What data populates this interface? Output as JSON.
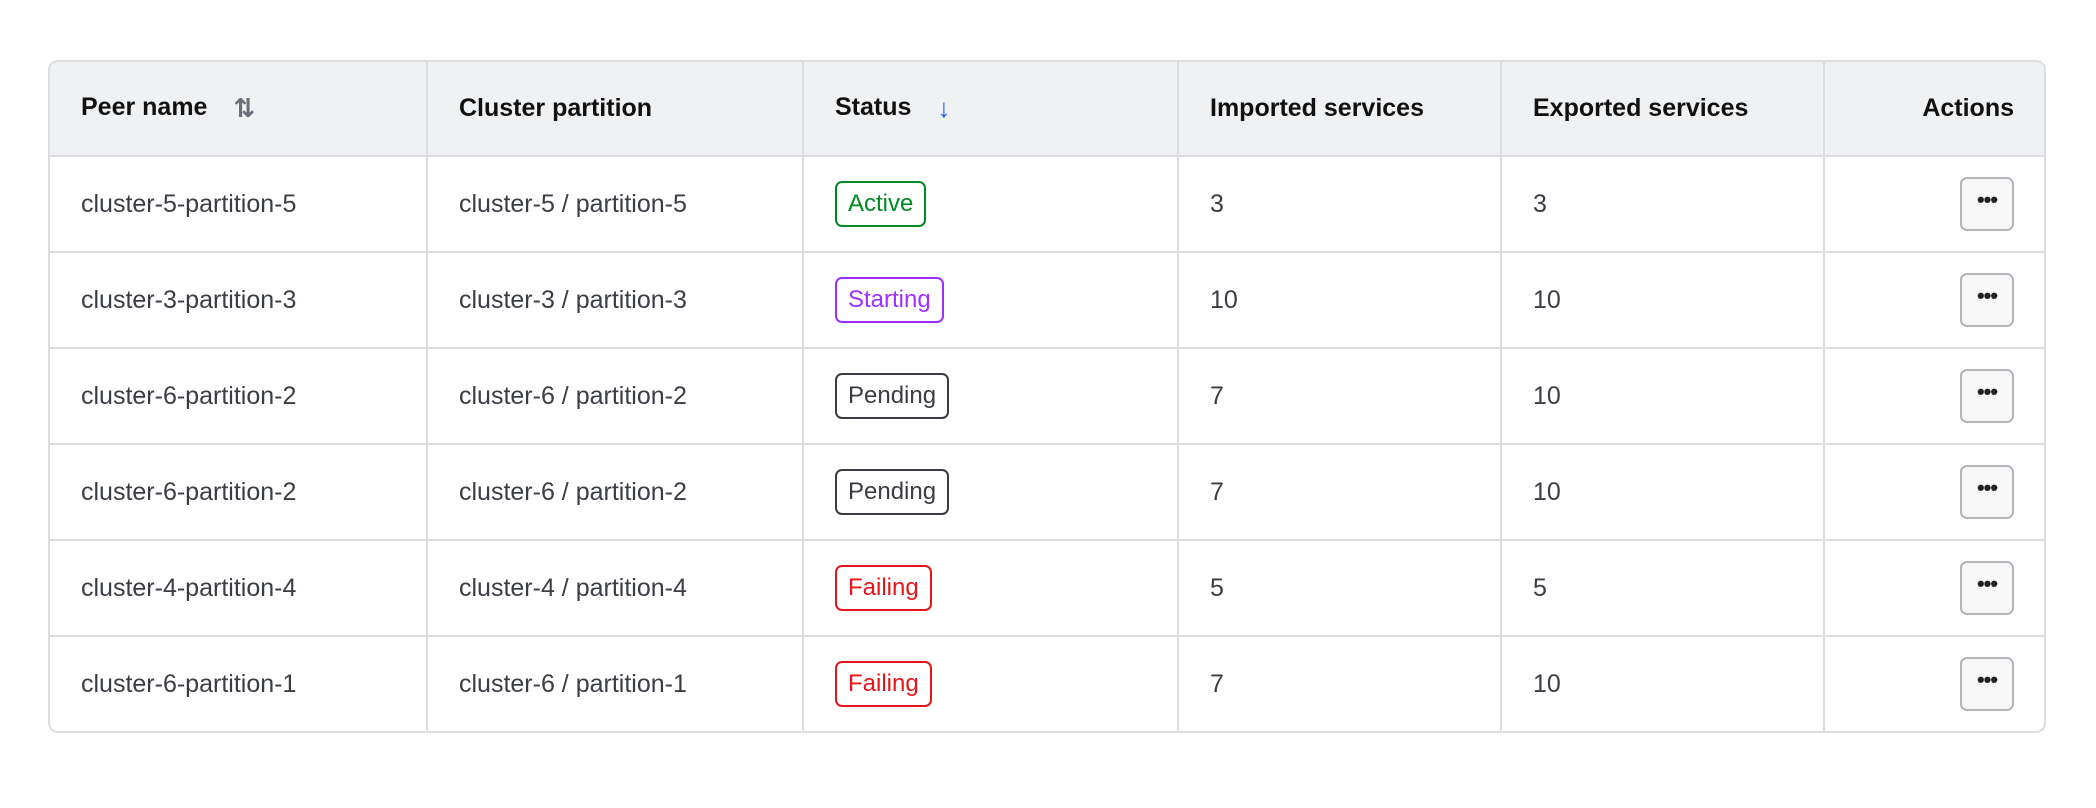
{
  "columns": [
    {
      "label": "Peer name",
      "sort_icon": "sort-both-icon",
      "sort_glyph": "⇅"
    },
    {
      "label": "Cluster partition"
    },
    {
      "label": "Status",
      "sort_icon": "arrow-down-icon",
      "sort_glyph": "↓"
    },
    {
      "label": "Imported services"
    },
    {
      "label": "Exported services"
    },
    {
      "label": "Actions"
    }
  ],
  "status_colors": {
    "Active": "#008a22",
    "Starting": "#9e2fff",
    "Pending": "#3b3d45",
    "Failing": "#e5161b"
  },
  "accent_color": "#1563ff",
  "action_glyph": "•••",
  "rows": [
    {
      "peer": "cluster-5-partition-5",
      "partition": "cluster-5 / partition-5",
      "status": "Active",
      "imported": "3",
      "exported": "3"
    },
    {
      "peer": "cluster-3-partition-3",
      "partition": "cluster-3 / partition-3",
      "status": "Starting",
      "imported": "10",
      "exported": "10"
    },
    {
      "peer": "cluster-6-partition-2",
      "partition": "cluster-6 / partition-2",
      "status": "Pending",
      "imported": "7",
      "exported": "10"
    },
    {
      "peer": "cluster-6-partition-2",
      "partition": "cluster-6 / partition-2",
      "status": "Pending",
      "imported": "7",
      "exported": "10"
    },
    {
      "peer": "cluster-4-partition-4",
      "partition": "cluster-4 / partition-4",
      "status": "Failing",
      "imported": "5",
      "exported": "5"
    },
    {
      "peer": "cluster-6-partition-1",
      "partition": "cluster-6 / partition-1",
      "status": "Failing",
      "imported": "7",
      "exported": "10"
    }
  ]
}
